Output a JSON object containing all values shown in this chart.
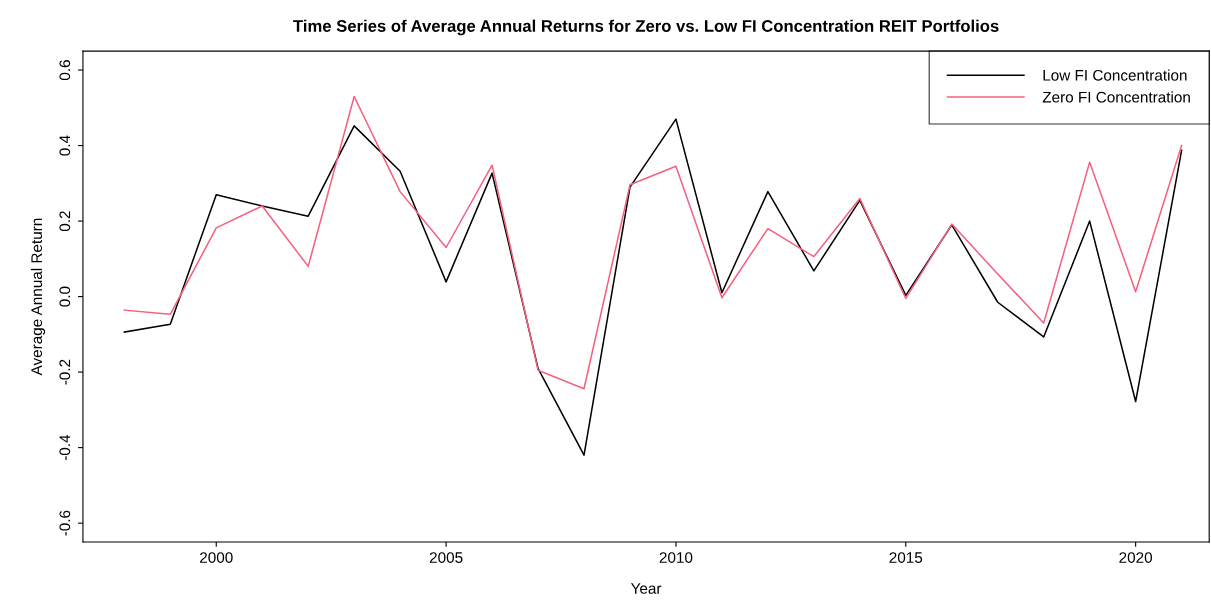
{
  "chart_data": {
    "type": "line",
    "title": "Time Series of Average Annual Returns for Zero vs. Low FI Concentration REIT Portfolios",
    "xlabel": "Year",
    "ylabel": "Average Annual Return",
    "x": [
      1998,
      1999,
      2000,
      2001,
      2002,
      2003,
      2004,
      2005,
      2006,
      2007,
      2008,
      2009,
      2010,
      2011,
      2012,
      2013,
      2014,
      2015,
      2016,
      2017,
      2018,
      2019,
      2020,
      2021
    ],
    "series": [
      {
        "name": "Low FI Concentration",
        "color": "#000000",
        "values": [
          -0.094,
          -0.073,
          0.27,
          0.24,
          0.213,
          0.452,
          0.332,
          0.039,
          0.327,
          -0.19,
          -0.42,
          0.29,
          0.47,
          0.01,
          0.278,
          0.068,
          0.255,
          0.003,
          0.19,
          -0.015,
          -0.107,
          0.2,
          -0.278,
          0.387
        ]
      },
      {
        "name": "Zero FI Concentration",
        "color": "#f5607e",
        "values": [
          -0.036,
          -0.047,
          0.182,
          0.24,
          0.08,
          0.53,
          0.278,
          0.13,
          0.348,
          -0.195,
          -0.244,
          0.296,
          0.345,
          -0.003,
          0.18,
          0.106,
          0.26,
          -0.005,
          0.192,
          0.06,
          -0.07,
          0.356,
          0.013,
          0.4
        ]
      }
    ],
    "xlim": [
      1997.1,
      2021.6
    ],
    "ylim": [
      -0.65,
      0.65
    ],
    "xticks": [
      2000,
      2005,
      2010,
      2015,
      2020
    ],
    "yticks": [
      {
        "value": -0.6,
        "label": "-0.6"
      },
      {
        "value": -0.4,
        "label": "-0.4"
      },
      {
        "value": -0.2,
        "label": "-0.2"
      },
      {
        "value": 0.0,
        "label": "0.0"
      },
      {
        "value": 0.2,
        "label": "0.2"
      },
      {
        "value": 0.4,
        "label": "0.4"
      },
      {
        "value": 0.6,
        "label": "0.6"
      }
    ],
    "legend": "top right",
    "grid": false,
    "marker": "none",
    "line_style": "solid"
  }
}
